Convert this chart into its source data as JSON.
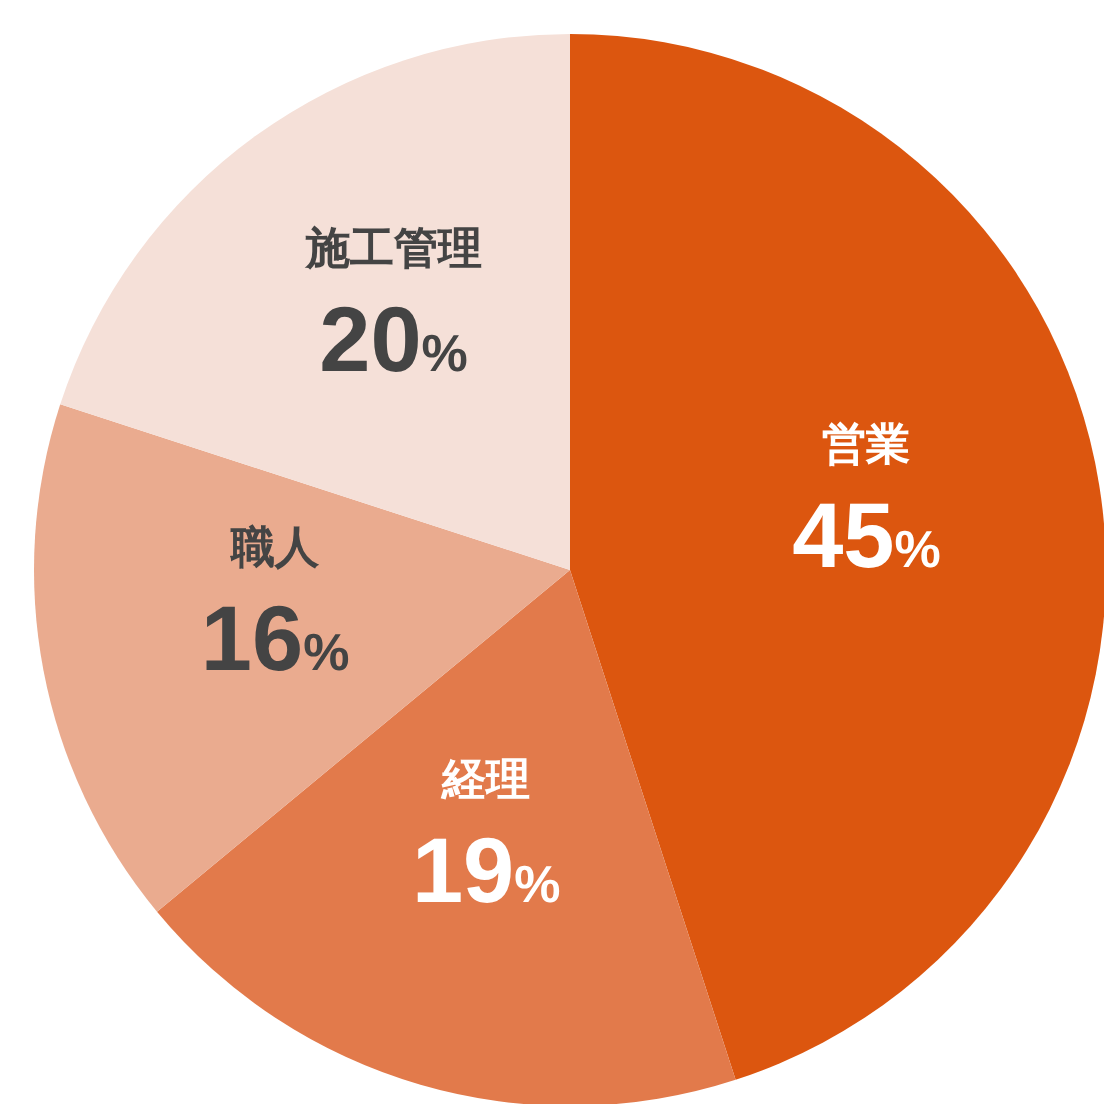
{
  "chart_data": {
    "type": "pie",
    "categories": [
      "営業",
      "経理",
      "職人",
      "施工管理"
    ],
    "values": [
      45,
      19,
      16,
      20
    ],
    "colors": [
      "#dc560f",
      "#e27a4b",
      "#eaab8f",
      "#f5e0d8"
    ],
    "value_labels": [
      "45%",
      "19%",
      "16%",
      "20%"
    ]
  }
}
